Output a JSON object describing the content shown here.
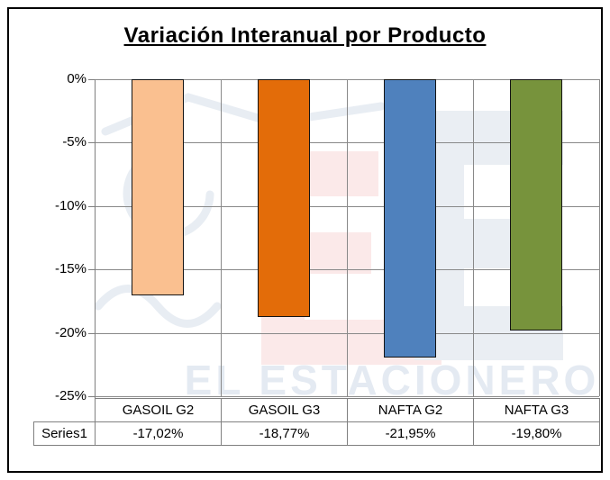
{
  "chart_data": {
    "type": "bar",
    "title": "Variación Interanual por Producto",
    "categories": [
      "GASOIL G2",
      "GASOIL G3",
      "NAFTA G2",
      "NAFTA G3"
    ],
    "series": [
      {
        "name": "Series1",
        "values": [
          -17.02,
          -18.77,
          -21.95,
          -19.8
        ]
      }
    ],
    "value_labels": [
      "-17,02%",
      "-18,77%",
      "-21,95%",
      "-19,80%"
    ],
    "bar_colors": [
      "#FAC090",
      "#E36C09",
      "#4F81BD",
      "#77933C"
    ],
    "xlabel": "",
    "ylabel": "",
    "ylim": [
      -25,
      0
    ],
    "ytick_labels": [
      "0%",
      "-5%",
      "-10%",
      "-15%",
      "-20%",
      "-25%"
    ],
    "grid": true,
    "legend_position": "data-table-left-cell"
  },
  "watermark": {
    "text": "EL ESTACIONERO",
    "letter_pink": "E",
    "letter_blue": "E",
    "color_blue": "#EAEEF3",
    "color_pink": "#FBE9E9",
    "text_color": "#E4EAF2"
  },
  "colors": {
    "gridline": "#898989",
    "axis": "#7F7F7F",
    "table_border": "#808080",
    "bar_stroke": "#141414",
    "frame_border": "#000000"
  }
}
